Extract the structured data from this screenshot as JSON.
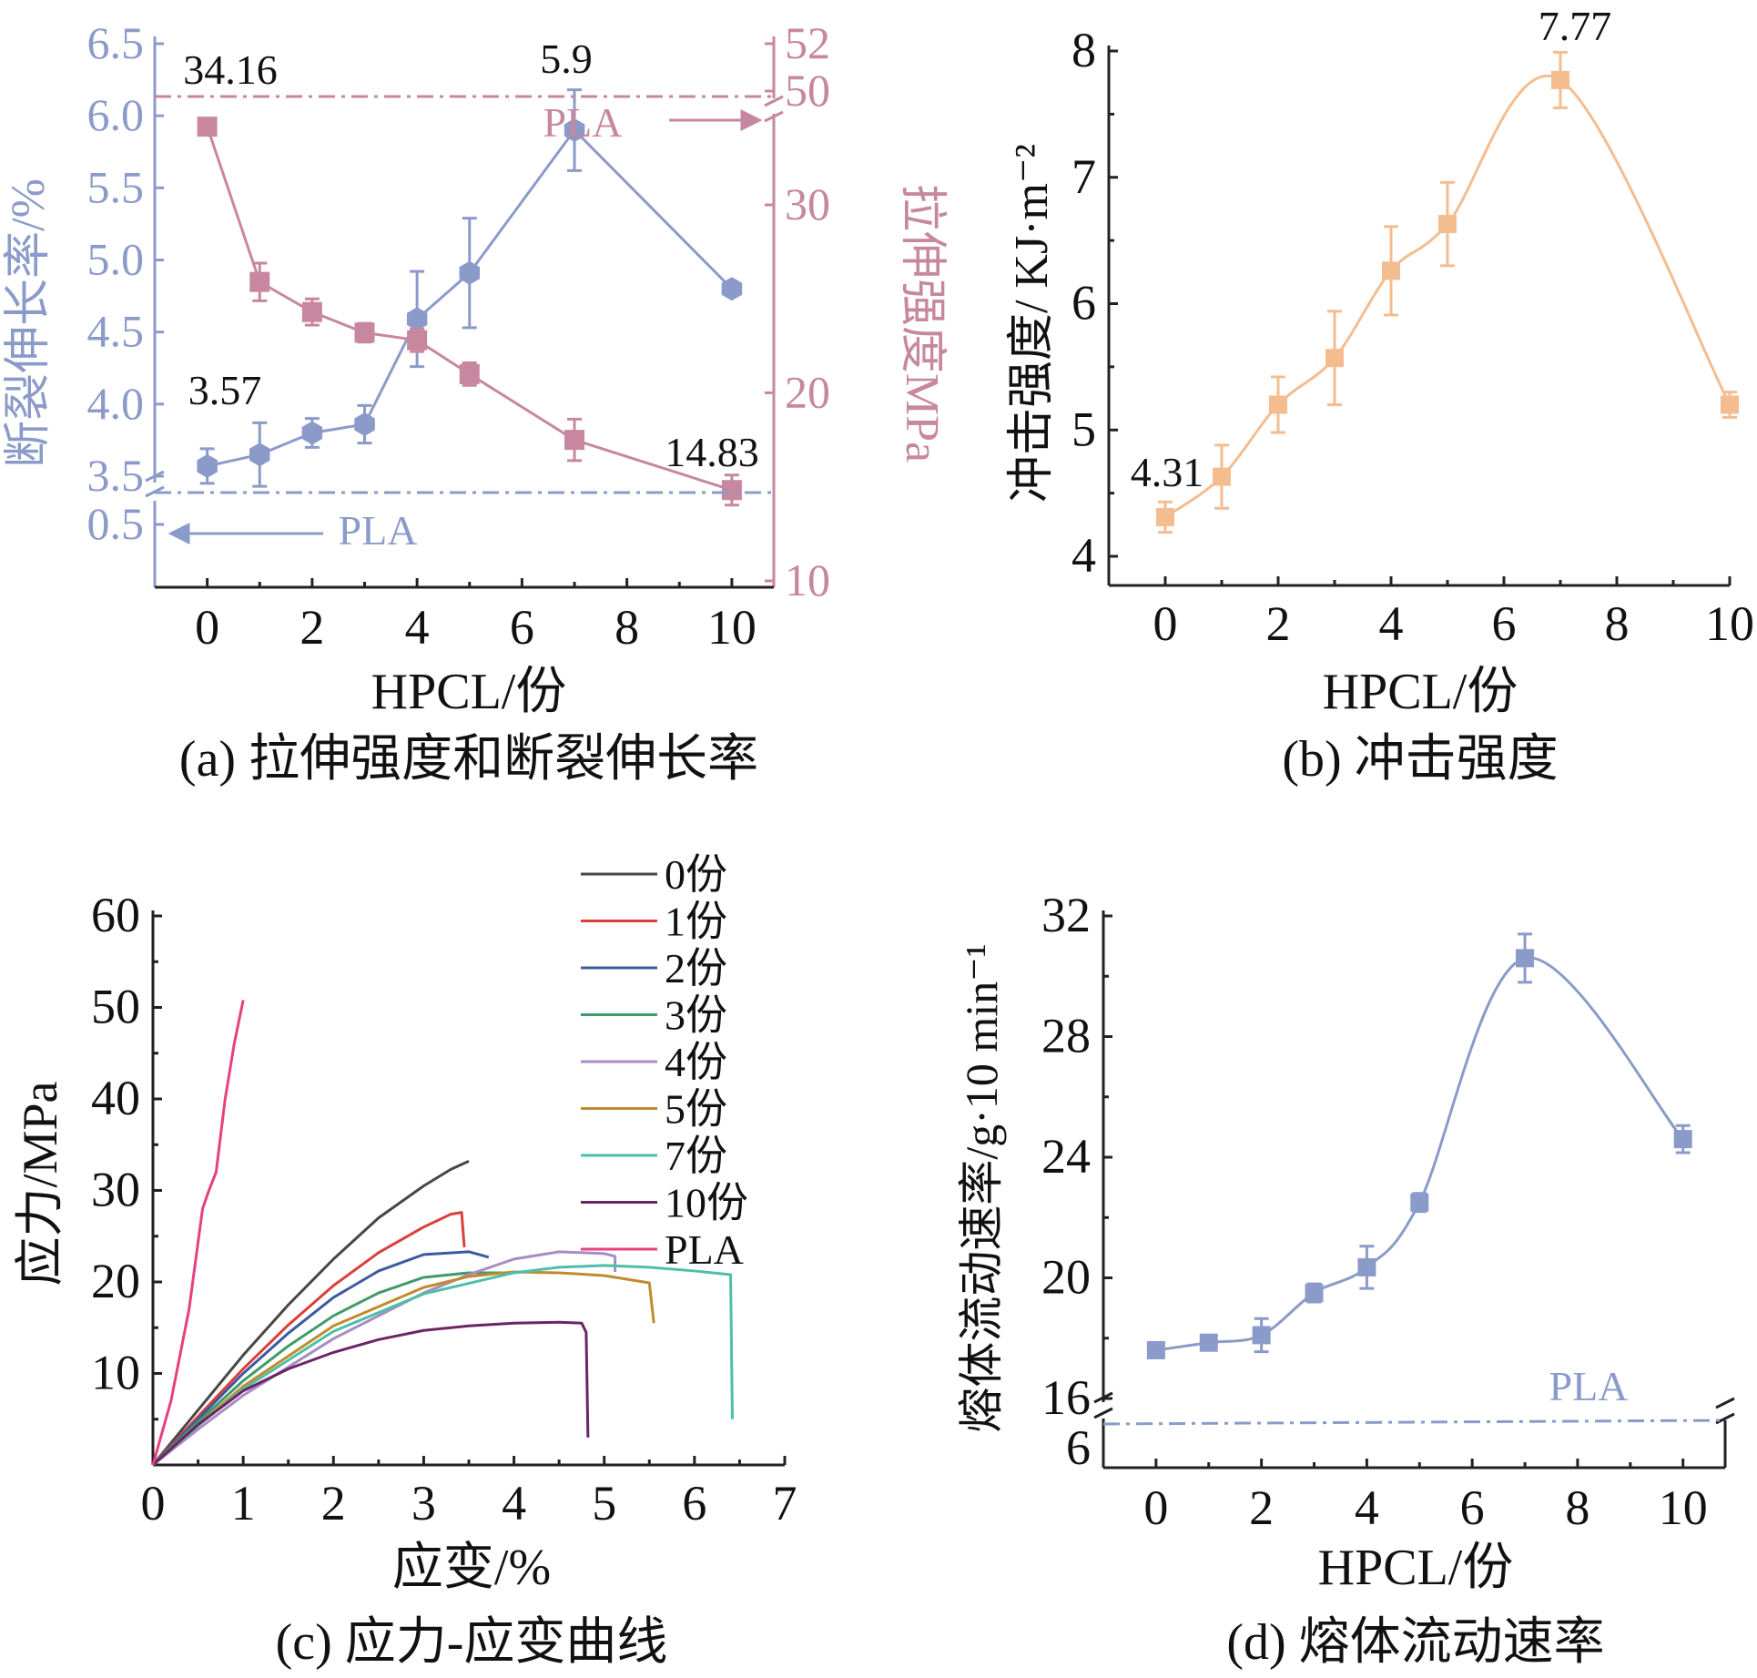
{
  "colors": {
    "blue": "#8b9bc9",
    "pink": "#c7879e",
    "orange": "#f4bd8f",
    "axis": "#222222",
    "text": "#111111"
  },
  "panels": {
    "a": {
      "caption": "(a) 拉伸强度和断裂伸长率"
    },
    "b": {
      "caption": "(b) 冲击强度"
    },
    "c": {
      "caption": "(c) 应力-应变曲线"
    },
    "d": {
      "caption": "(d) 熔体流动速率"
    }
  },
  "chart_data": [
    {
      "panel": "a",
      "type": "line",
      "xlabel": "HPCL/份",
      "x_ticks": [
        "0",
        "2",
        "4",
        "6",
        "8",
        "10"
      ],
      "xlim": [
        -1,
        10.8
      ],
      "ylabel_left": "断裂伸长率/%",
      "left_ticks_upper": [
        "3.5",
        "4.0",
        "4.5",
        "5.0",
        "5.5",
        "6.0",
        "6.5"
      ],
      "left_ticks_lower": [
        "0.5"
      ],
      "ylim_left": [
        3.35,
        6.5
      ],
      "ylabel_right": "拉伸强度MPa",
      "right_ticks_lower": [
        "10",
        "20",
        "30"
      ],
      "right_ticks_upper": [
        "50",
        "52"
      ],
      "ylim_right": [
        10,
        52
      ],
      "axis_break": true,
      "series": [
        {
          "name": "断裂伸长率",
          "axis": "left",
          "marker": "hexagon",
          "x": [
            0,
            1,
            2,
            3,
            4,
            5,
            7,
            10
          ],
          "y": [
            3.57,
            3.65,
            3.8,
            3.86,
            4.59,
            4.91,
            5.9,
            4.8
          ],
          "err": [
            0.12,
            0.22,
            0.1,
            0.13,
            0.33,
            0.38,
            0.28,
            0.0
          ]
        },
        {
          "name": "拉伸强度",
          "axis": "right",
          "marker": "square",
          "x": [
            0,
            1,
            2,
            3,
            4,
            5,
            7,
            10
          ],
          "y": [
            34.16,
            25.9,
            24.3,
            23.2,
            22.8,
            21.0,
            17.5,
            14.83
          ],
          "err": [
            0.0,
            1.0,
            0.7,
            0.5,
            0.6,
            0.6,
            1.1,
            0.8
          ]
        }
      ],
      "reference_lines": [
        {
          "label": "PLA",
          "axis": "right",
          "value": 50,
          "arrow": "right"
        },
        {
          "label": "PLA",
          "axis": "left",
          "value": 0.5,
          "arrow": "left"
        }
      ],
      "annotations": [
        "34.16",
        "5.9",
        "3.57",
        "14.83"
      ]
    },
    {
      "panel": "b",
      "type": "line",
      "xlabel": "HPCL/份",
      "ylabel": "冲击强度/ KJ·m⁻²",
      "x_ticks": [
        "0",
        "2",
        "4",
        "6",
        "8",
        "10"
      ],
      "y_ticks": [
        "4",
        "5",
        "6",
        "7",
        "8"
      ],
      "xlim": [
        -1,
        10
      ],
      "ylim": [
        3.8,
        8
      ],
      "series": [
        {
          "name": "冲击强度",
          "marker": "square",
          "smooth": true,
          "x": [
            0,
            1,
            2,
            3,
            4,
            5,
            7,
            10
          ],
          "y": [
            4.31,
            4.63,
            5.2,
            5.57,
            6.26,
            6.63,
            7.77,
            5.2
          ],
          "err": [
            0.12,
            0.25,
            0.22,
            0.37,
            0.35,
            0.33,
            0.22,
            0.1
          ]
        }
      ],
      "annotations": [
        "4.31",
        "7.77"
      ]
    },
    {
      "panel": "c",
      "type": "line",
      "xlabel": "应变/%",
      "ylabel": "应力/MPa",
      "x_ticks": [
        "0",
        "1",
        "2",
        "3",
        "4",
        "5",
        "6",
        "7"
      ],
      "y_ticks": [
        "10",
        "20",
        "30",
        "40",
        "50",
        "60"
      ],
      "xlim": [
        0,
        7
      ],
      "ylim": [
        0,
        60
      ],
      "legend_position": "top-right",
      "series": [
        {
          "name": "0份",
          "color": "#4a4646",
          "x": [
            0,
            0.5,
            1,
            1.5,
            2,
            2.5,
            3,
            3.3,
            3.5
          ],
          "y": [
            0,
            6,
            12,
            17.5,
            22.5,
            27,
            30.5,
            32.3,
            33.2
          ]
        },
        {
          "name": "1份",
          "color": "#d9403c",
          "x": [
            0,
            0.5,
            1,
            1.5,
            2,
            2.5,
            3,
            3.3,
            3.42,
            3.45
          ],
          "y": [
            0,
            5.3,
            10.5,
            15.3,
            19.6,
            23.2,
            26,
            27.4,
            27.6,
            23.8
          ]
        },
        {
          "name": "2份",
          "color": "#3d5aa0",
          "x": [
            0,
            0.5,
            1,
            1.5,
            2,
            2.5,
            3,
            3.5,
            3.72
          ],
          "y": [
            0,
            5,
            10,
            14.4,
            18.3,
            21.2,
            23,
            23.3,
            22.7
          ]
        },
        {
          "name": "3份",
          "color": "#3f9b6a",
          "x": [
            0,
            0.5,
            1,
            1.5,
            2,
            2.5,
            3,
            3.5,
            3.9
          ],
          "y": [
            0,
            4.7,
            9.2,
            13,
            16.3,
            18.8,
            20.5,
            21,
            21
          ]
        },
        {
          "name": "4份",
          "color": "#a88cc2",
          "x": [
            0,
            0.5,
            1,
            2,
            3,
            3.5,
            4,
            4.5,
            5,
            5.12,
            5.12
          ],
          "y": [
            0,
            3.9,
            7.6,
            13.8,
            18.8,
            20.8,
            22.5,
            23.3,
            23.1,
            22.8,
            21.1
          ]
        },
        {
          "name": "5份",
          "color": "#c08b2f",
          "x": [
            0,
            0.5,
            1,
            2,
            3,
            3.5,
            4,
            4.5,
            5,
            5.5,
            5.55
          ],
          "y": [
            0,
            4.4,
            8.6,
            15.2,
            19.4,
            20.6,
            21.1,
            21,
            20.7,
            19.9,
            15.5
          ]
        },
        {
          "name": "7份",
          "color": "#4dbfa8",
          "x": [
            0,
            0.5,
            1,
            2,
            3,
            4,
            4.5,
            5,
            5.5,
            6,
            6.4,
            6.42
          ],
          "y": [
            0,
            4.3,
            8.3,
            14.6,
            18.7,
            21,
            21.6,
            21.8,
            21.6,
            21.2,
            20.8,
            5
          ]
        },
        {
          "name": "10份",
          "color": "#6a2565",
          "x": [
            0,
            0.5,
            1,
            1.5,
            2,
            2.5,
            3,
            3.5,
            4,
            4.5,
            4.75,
            4.8,
            4.82
          ],
          "y": [
            0,
            4.4,
            8.1,
            10.5,
            12.3,
            13.7,
            14.7,
            15.2,
            15.5,
            15.6,
            15.5,
            14.5,
            3
          ]
        },
        {
          "name": "PLA",
          "color": "#e83f80",
          "x": [
            0,
            0.2,
            0.4,
            0.55,
            0.62,
            0.7,
            0.8,
            0.9,
            1.0
          ],
          "y": [
            0,
            7,
            17,
            28,
            30,
            32,
            40,
            46,
            50.8
          ]
        }
      ]
    },
    {
      "panel": "d",
      "type": "line",
      "xlabel": "HPCL/份",
      "ylabel": "熔体流动速率/g·10 min⁻¹",
      "x_ticks": [
        "0",
        "2",
        "4",
        "6",
        "8",
        "10"
      ],
      "xlim": [
        -1,
        10.8
      ],
      "y_ticks_upper": [
        "16",
        "20",
        "24",
        "28",
        "32"
      ],
      "y_ticks_lower": [
        "6"
      ],
      "ylim": [
        16,
        32
      ],
      "axis_break": true,
      "series": [
        {
          "name": "熔体流动速率",
          "marker": "square",
          "smooth": true,
          "x": [
            0,
            1,
            2,
            3,
            4,
            5,
            7,
            10
          ],
          "y": [
            17.6,
            17.85,
            18.1,
            19.5,
            20.35,
            22.5,
            30.6,
            24.6
          ],
          "err": [
            0.15,
            0.2,
            0.55,
            0.3,
            0.7,
            0.3,
            0.8,
            0.45
          ]
        }
      ],
      "reference_lines": [
        {
          "label": "PLA",
          "value_text": "below axis break"
        }
      ]
    }
  ]
}
